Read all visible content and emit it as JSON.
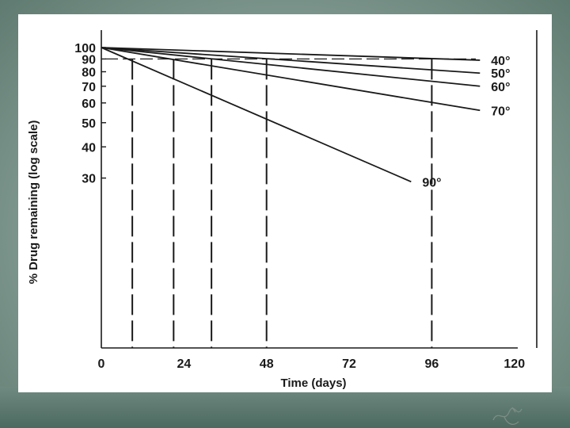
{
  "chart_data": {
    "type": "line",
    "title": "",
    "xlabel": "Time (days)",
    "ylabel": "% Drug remaining (log scale)",
    "x_scale": "linear",
    "y_scale": "log",
    "xlim": [
      0,
      120
    ],
    "ylim": [
      27,
      100
    ],
    "x_ticks": [
      0,
      24,
      48,
      72,
      96,
      120
    ],
    "x_tick_labels": [
      "0",
      "24",
      "48",
      "72",
      "96",
      "120"
    ],
    "y_ticks": [
      100,
      90,
      80,
      70,
      60,
      50,
      40,
      30
    ],
    "y_tick_labels": [
      "100",
      "90",
      "80",
      "70",
      "60",
      "50",
      "40",
      "30"
    ],
    "grid": false,
    "reference_line": {
      "y": 90
    },
    "series": [
      {
        "name": "40°",
        "points": [
          [
            0,
            100
          ],
          [
            110,
            89
          ]
        ],
        "t90": 96
      },
      {
        "name": "50°",
        "points": [
          [
            0,
            100
          ],
          [
            110,
            79
          ]
        ],
        "t90": 48
      },
      {
        "name": "60°",
        "points": [
          [
            0,
            100
          ],
          [
            110,
            70
          ]
        ],
        "t90": 32
      },
      {
        "name": "70°",
        "points": [
          [
            0,
            100
          ],
          [
            110,
            56
          ]
        ],
        "t90": 21
      },
      {
        "name": "90°",
        "points": [
          [
            0,
            100
          ],
          [
            90,
            29
          ]
        ],
        "t90": 9
      }
    ]
  }
}
